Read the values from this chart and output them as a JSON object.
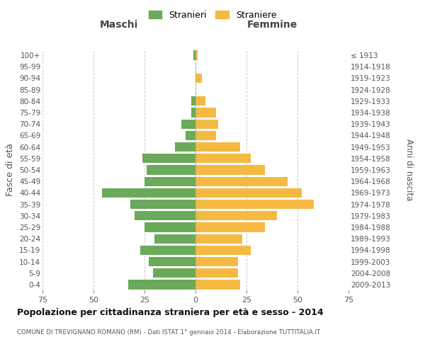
{
  "age_groups": [
    "0-4",
    "5-9",
    "10-14",
    "15-19",
    "20-24",
    "25-29",
    "30-34",
    "35-39",
    "40-44",
    "45-49",
    "50-54",
    "55-59",
    "60-64",
    "65-69",
    "70-74",
    "75-79",
    "80-84",
    "85-89",
    "90-94",
    "95-99",
    "100+"
  ],
  "birth_years": [
    "2009-2013",
    "2004-2008",
    "1999-2003",
    "1994-1998",
    "1989-1993",
    "1984-1988",
    "1979-1983",
    "1974-1978",
    "1969-1973",
    "1964-1968",
    "1959-1963",
    "1954-1958",
    "1949-1953",
    "1944-1948",
    "1939-1943",
    "1934-1938",
    "1929-1933",
    "1924-1928",
    "1919-1923",
    "1914-1918",
    "≤ 1913"
  ],
  "males": [
    33,
    21,
    23,
    27,
    20,
    25,
    30,
    32,
    46,
    25,
    24,
    26,
    10,
    5,
    7,
    2,
    2,
    0,
    0,
    0,
    1
  ],
  "females": [
    22,
    21,
    21,
    27,
    23,
    34,
    40,
    58,
    52,
    45,
    34,
    27,
    22,
    10,
    11,
    10,
    5,
    0,
    3,
    0,
    1
  ],
  "male_color": "#6aaa5a",
  "female_color": "#f5b942",
  "background_color": "#ffffff",
  "grid_color": "#cccccc",
  "title": "Popolazione per cittadinanza straniera per età e sesso - 2014",
  "subtitle": "COMUNE DI TREVIGNANO ROMANO (RM) - Dati ISTAT 1° gennaio 2014 - Elaborazione TUTTITALIA.IT",
  "left_header": "Maschi",
  "right_header": "Femmine",
  "ylabel": "Fasce di età",
  "right_ylabel": "Anni di nascita",
  "legend_male": "Stranieri",
  "legend_female": "Straniere",
  "xlim": 75,
  "bar_height": 0.82
}
